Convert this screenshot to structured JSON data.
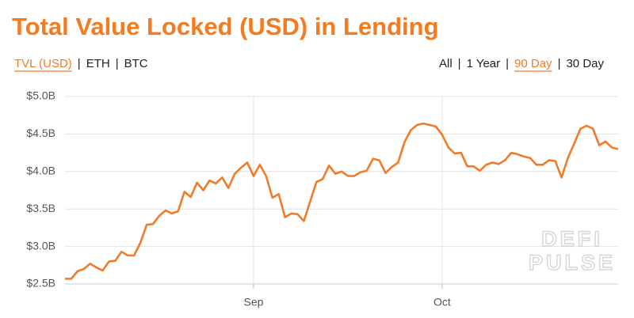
{
  "tabs": {
    "items": [
      "TVL (USD)",
      "ETH",
      "BTC"
    ],
    "active": 0
  },
  "ranges": {
    "items": [
      "All",
      "1 Year",
      "90 Day",
      "30 Day"
    ],
    "active": 2
  },
  "separator": "|",
  "watermark": [
    "DEFI",
    "PULSE"
  ],
  "chart_data": {
    "type": "line",
    "title": "Total Value Locked (USD) in Lending",
    "series": [
      {
        "name": "TVL (USD)",
        "color": "#f07b2a",
        "values": [
          2570000000.0,
          2570000000.0,
          2670000000.0,
          2700000000.0,
          2770000000.0,
          2720000000.0,
          2680000000.0,
          2800000000.0,
          2810000000.0,
          2930000000.0,
          2880000000.0,
          2880000000.0,
          3050000000.0,
          3290000000.0,
          3300000000.0,
          3410000000.0,
          3480000000.0,
          3440000000.0,
          3470000000.0,
          3730000000.0,
          3660000000.0,
          3850000000.0,
          3750000000.0,
          3880000000.0,
          3840000000.0,
          3920000000.0,
          3780000000.0,
          3970000000.0,
          4050000000.0,
          4120000000.0,
          3940000000.0,
          4090000000.0,
          3940000000.0,
          3650000000.0,
          3700000000.0,
          3390000000.0,
          3440000000.0,
          3430000000.0,
          3340000000.0,
          3600000000.0,
          3860000000.0,
          3900000000.0,
          4080000000.0,
          3970000000.0,
          4000000000.0,
          3940000000.0,
          3940000000.0,
          3990000000.0,
          4010000000.0,
          4170000000.0,
          4150000000.0,
          3980000000.0,
          4060000000.0,
          4120000000.0,
          4390000000.0,
          4550000000.0,
          4620000000.0,
          4640000000.0,
          4620000000.0,
          4600000000.0,
          4490000000.0,
          4320000000.0,
          4240000000.0,
          4250000000.0,
          4070000000.0,
          4070000000.0,
          4010000000.0,
          4090000000.0,
          4120000000.0,
          4100000000.0,
          4150000000.0,
          4250000000.0,
          4230000000.0,
          4200000000.0,
          4180000000.0,
          4090000000.0,
          4090000000.0,
          4150000000.0,
          4140000000.0,
          3920000000.0,
          4180000000.0,
          4370000000.0,
          4570000000.0,
          4610000000.0,
          4570000000.0,
          4350000000.0,
          4400000000.0,
          4320000000.0,
          4300000000.0
        ]
      }
    ],
    "xlim": [
      0,
      88
    ],
    "xticks": [
      {
        "value": 30,
        "label": "Sep"
      },
      {
        "value": 60,
        "label": "Oct"
      }
    ],
    "ylim": [
      2500000000.0,
      5000000000.0
    ],
    "yticks": [
      {
        "value": 2500000000.0,
        "label": "$2.5B"
      },
      {
        "value": 3000000000.0,
        "label": "$3.0B"
      },
      {
        "value": 3500000000.0,
        "label": "$3.5B"
      },
      {
        "value": 4000000000.0,
        "label": "$4.0B"
      },
      {
        "value": 4500000000.0,
        "label": "$4.5B"
      },
      {
        "value": 5000000000.0,
        "label": "$5.0B"
      }
    ],
    "grid": true
  }
}
